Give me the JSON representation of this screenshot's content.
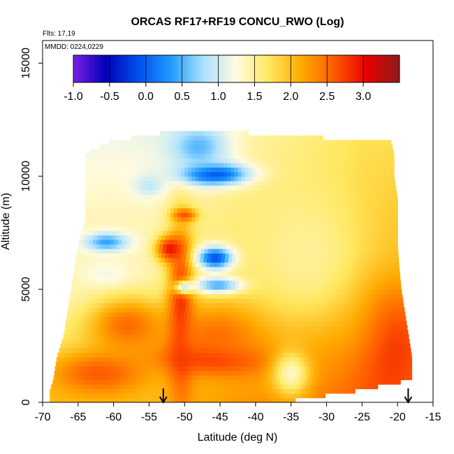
{
  "chart_data": {
    "type": "heatmap",
    "title": "ORCAS RF17+RF19 CONCU_RWO (Log)",
    "flights_label": "Flts: 17,19",
    "date_label": "MMDD: 0224,0229",
    "xlabel": "Latitude (deg N)",
    "ylabel": "Altitude (m)",
    "xlim": [
      -70,
      -15
    ],
    "ylim": [
      0,
      16000
    ],
    "x_ticks": [
      -70,
      -65,
      -60,
      -55,
      -50,
      -45,
      -40,
      -35,
      -30,
      -25,
      -20,
      -15
    ],
    "x_tick_labels": [
      "-70",
      "-65",
      "-60",
      "-55",
      "-50",
      "-45",
      "-40",
      "-35",
      "-30",
      "-25",
      "-20",
      "-15"
    ],
    "y_ticks": [
      0,
      5000,
      10000,
      15000
    ],
    "y_tick_labels": [
      "0",
      "5000",
      "10000",
      "15000"
    ],
    "colorbar": {
      "range": [
        -1.0,
        3.5
      ],
      "ticks": [
        -1.0,
        -0.5,
        0.0,
        0.5,
        1.0,
        1.5,
        2.0,
        2.5,
        3.0
      ],
      "tick_labels": [
        "-1.0",
        "-0.5",
        "0.0",
        "0.5",
        "1.0",
        "1.5",
        "2.0",
        "2.5",
        "3.0"
      ],
      "colors": [
        "#7a1fe6",
        "#0000b8",
        "#0050ee",
        "#1f9bff",
        "#aee2ff",
        "#fffbe0",
        "#ffe860",
        "#ffaa00",
        "#ff5a00",
        "#e80000",
        "#8c1c1c"
      ]
    },
    "profile_markers_lat": [
      -53,
      -18.5
    ],
    "altitude_profile": [
      [
        0,
        -69,
        -36.5
      ],
      [
        500,
        -69,
        -26
      ],
      [
        1000,
        -68.5,
        -18
      ],
      [
        2000,
        -68,
        -18
      ],
      [
        3000,
        -67,
        -18.5
      ],
      [
        4000,
        -66.5,
        -19
      ],
      [
        5000,
        -66,
        -19.5
      ],
      [
        6000,
        -65.5,
        -19.8
      ],
      [
        7000,
        -65,
        -20
      ],
      [
        8000,
        -64,
        -20
      ],
      [
        9000,
        -64,
        -20
      ],
      [
        10000,
        -64,
        -20.5
      ],
      [
        11000,
        -64,
        -20.5
      ],
      [
        11600,
        -60,
        -21
      ],
      [
        11800,
        -55,
        -40
      ],
      [
        12000,
        -52,
        -42
      ]
    ],
    "features": [
      {
        "lat": -22,
        "alt": 2800,
        "value": 3.1,
        "sx": 4,
        "sy": 1700
      },
      {
        "lat": -30,
        "alt": 3200,
        "value": 2.5,
        "sx": 7,
        "sy": 1800
      },
      {
        "lat": -50.5,
        "alt": 4000,
        "value": 3.0,
        "sx": 1.3,
        "sy": 2600
      },
      {
        "lat": -45,
        "alt": 2000,
        "value": 3.0,
        "sx": 6,
        "sy": 500
      },
      {
        "lat": -62,
        "alt": 1300,
        "value": 2.6,
        "sx": 5,
        "sy": 700
      },
      {
        "lat": -52,
        "alt": 6800,
        "value": 3.0,
        "sx": 1.4,
        "sy": 400
      },
      {
        "lat": -50,
        "alt": 8300,
        "value": 2.7,
        "sx": 1.2,
        "sy": 200
      },
      {
        "lat": -44,
        "alt": 3000,
        "value": 2.6,
        "sx": 6,
        "sy": 1100
      },
      {
        "lat": -58,
        "alt": 3400,
        "value": 2.5,
        "sx": 4,
        "sy": 900
      },
      {
        "lat": -35,
        "alt": 1300,
        "value": 1.3,
        "sx": 1.8,
        "sy": 700
      },
      {
        "lat": -45.5,
        "alt": 10100,
        "value": -0.3,
        "sx": 3.5,
        "sy": 350
      },
      {
        "lat": -48,
        "alt": 11300,
        "value": 0.5,
        "sx": 3,
        "sy": 700
      },
      {
        "lat": -45.5,
        "alt": 6400,
        "value": -0.5,
        "sx": 1.8,
        "sy": 350
      },
      {
        "lat": -45,
        "alt": 5200,
        "value": 0.2,
        "sx": 2.5,
        "sy": 250
      },
      {
        "lat": -61,
        "alt": 7100,
        "value": 0.4,
        "sx": 2.2,
        "sy": 300
      },
      {
        "lat": -61,
        "alt": 5700,
        "value": 1.2,
        "sx": 2.5,
        "sy": 400
      },
      {
        "lat": -55,
        "alt": 9600,
        "value": 0.9,
        "sx": 1.5,
        "sy": 350
      },
      {
        "lat": -33,
        "alt": 6500,
        "value": 1.5,
        "sx": 7,
        "sy": 2800
      },
      {
        "lat": -50,
        "alt": 5100,
        "value": 1.0,
        "sx": 1.0,
        "sy": 200
      }
    ]
  }
}
